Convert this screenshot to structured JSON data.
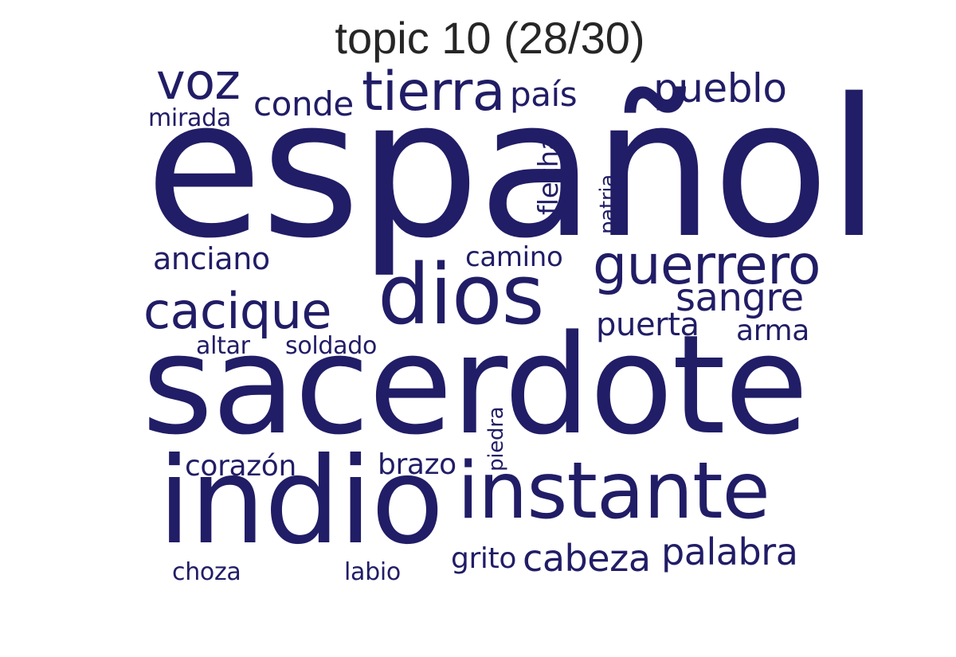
{
  "title": "topic 10 (28/30)",
  "color": "#211d66",
  "words": {
    "espanol": "español",
    "sacerdote": "sacerdote",
    "indio": "indio",
    "instante": "instante",
    "dios": "dios",
    "guerrero": "guerrero",
    "tierra": "tierra",
    "cacique": "cacique",
    "voz": "voz",
    "pueblo": "pueblo",
    "sangre": "sangre",
    "palabra": "palabra",
    "cabeza": "cabeza",
    "conde": "conde",
    "pais": "país",
    "puerta": "puerta",
    "anciano": "anciano",
    "camino": "camino",
    "corazon": "corazón",
    "brazo": "brazo",
    "arma": "arma",
    "grito": "grito",
    "flecha": "flecha",
    "soldado": "soldado",
    "altar": "altar",
    "mirada": "mirada",
    "choza": "choza",
    "labio": "labio",
    "patria": "patria",
    "piedra": "piedra"
  }
}
